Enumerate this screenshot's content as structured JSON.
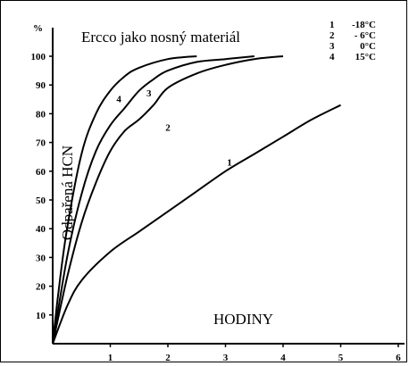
{
  "chart_data": {
    "type": "line",
    "title": "Ercco jako nosný materiál",
    "xlabel": "HODINY",
    "ylabel": "Odpařená HCN",
    "y_unit": "%",
    "xlim": [
      0,
      6
    ],
    "ylim": [
      0,
      105
    ],
    "x_ticks": [
      "1",
      "2",
      "3",
      "4",
      "5",
      "6"
    ],
    "y_ticks": [
      "10",
      "20",
      "30",
      "40",
      "50",
      "60",
      "70",
      "80",
      "90",
      "100"
    ],
    "grid": false,
    "legend_position": "top-right",
    "legend": [
      {
        "key": "1",
        "value": "-18°C"
      },
      {
        "key": "2",
        "value": "- 6°C"
      },
      {
        "key": "3",
        "value": "0°C"
      },
      {
        "key": "4",
        "value": "15°C"
      }
    ],
    "series": [
      {
        "name": "1",
        "points": [
          [
            0,
            0
          ],
          [
            0.25,
            13
          ],
          [
            0.5,
            22
          ],
          [
            1,
            32
          ],
          [
            1.5,
            39
          ],
          [
            2,
            46
          ],
          [
            2.5,
            53
          ],
          [
            3,
            60
          ],
          [
            3.5,
            66
          ],
          [
            4,
            72
          ],
          [
            4.5,
            78
          ],
          [
            5,
            83
          ]
        ]
      },
      {
        "name": "2",
        "points": [
          [
            0,
            0
          ],
          [
            0.25,
            23
          ],
          [
            0.5,
            42
          ],
          [
            0.75,
            56
          ],
          [
            1,
            67
          ],
          [
            1.25,
            74
          ],
          [
            1.5,
            78
          ],
          [
            1.75,
            83
          ],
          [
            2,
            89
          ],
          [
            2.5,
            94
          ],
          [
            3,
            97
          ],
          [
            3.5,
            99
          ],
          [
            4,
            100
          ]
        ]
      },
      {
        "name": "3",
        "points": [
          [
            0,
            0
          ],
          [
            0.25,
            30
          ],
          [
            0.5,
            52
          ],
          [
            0.75,
            67
          ],
          [
            1,
            76
          ],
          [
            1.25,
            82
          ],
          [
            1.5,
            88
          ],
          [
            1.75,
            92
          ],
          [
            2,
            95
          ],
          [
            2.5,
            98
          ],
          [
            3,
            99
          ],
          [
            3.5,
            100
          ]
        ]
      },
      {
        "name": "4",
        "points": [
          [
            0,
            0
          ],
          [
            0.1,
            18
          ],
          [
            0.25,
            40
          ],
          [
            0.5,
            66
          ],
          [
            0.75,
            80
          ],
          [
            1,
            88
          ],
          [
            1.25,
            93
          ],
          [
            1.5,
            96
          ],
          [
            2,
            99
          ],
          [
            2.5,
            100
          ]
        ]
      }
    ]
  }
}
